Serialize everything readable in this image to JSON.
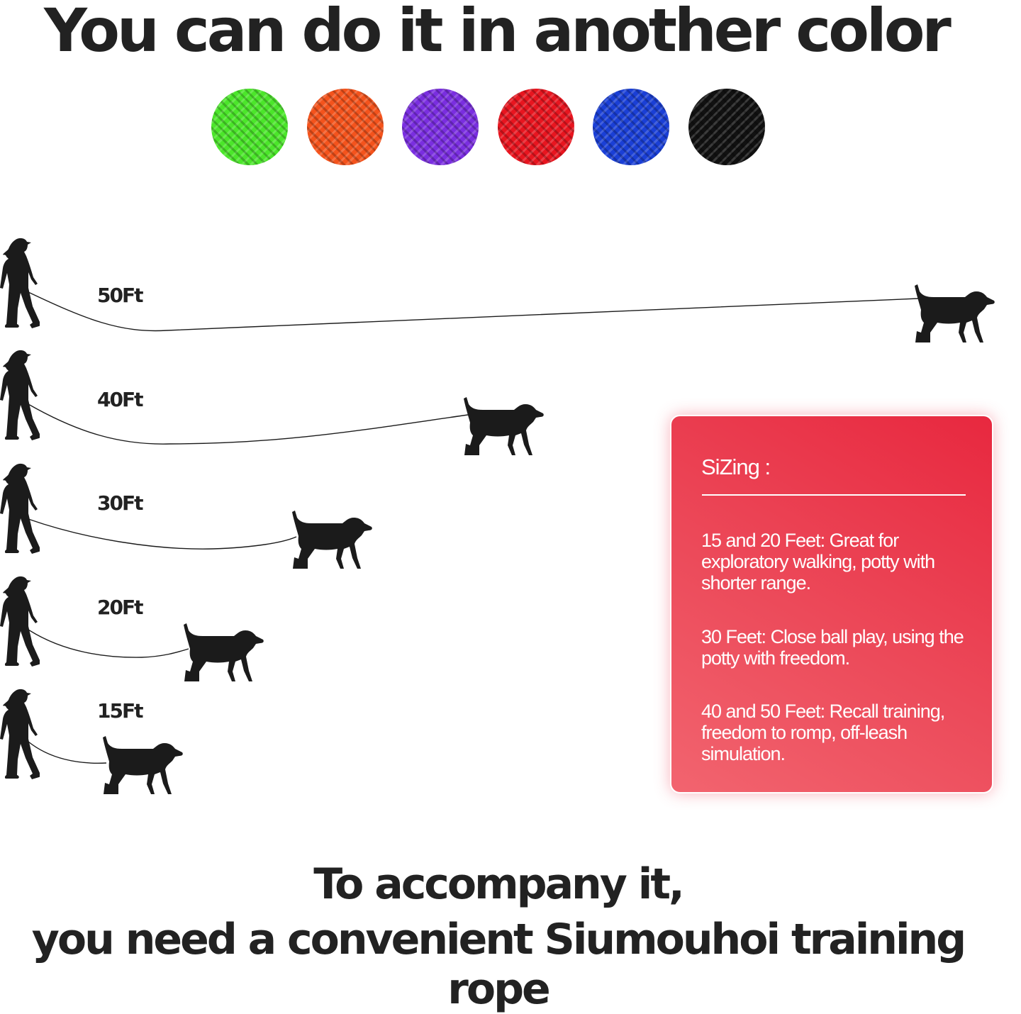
{
  "title": "You can do it in another color",
  "colors": [
    {
      "name": "green",
      "hex": "#4be62a"
    },
    {
      "name": "orange",
      "hex": "#f4531c"
    },
    {
      "name": "purple",
      "hex": "#7a2ee0"
    },
    {
      "name": "red",
      "hex": "#e8151f"
    },
    {
      "name": "blue",
      "hex": "#1a3fd6"
    },
    {
      "name": "black",
      "hex": "#111111"
    }
  ],
  "lengths": [
    "50Ft",
    "40Ft",
    "30Ft",
    "20Ft",
    "15Ft"
  ],
  "sizing": {
    "title": "SiZing :",
    "items": [
      "15 and 20 Feet: Great for exploratory walking, potty with shorter range.",
      "30 Feet: Close ball play, using the potty with freedom.",
      "40 and 50 Feet: Recall training, freedom to romp, off-leash simulation."
    ],
    "card_color": "#e8283f"
  },
  "footer": {
    "line1": "To accompany it,",
    "line2": "you need a convenient Siumouhoi training rope"
  }
}
